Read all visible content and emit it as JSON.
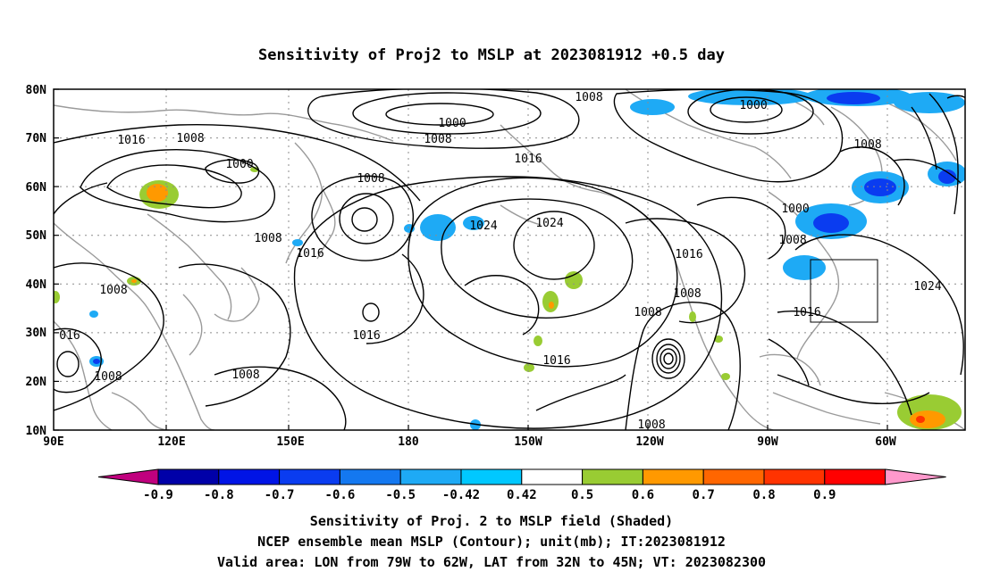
{
  "title": "Sensitivity of Proj2 to MSLP at 2023081912 +0.5 day",
  "axes": {
    "lat_labels": [
      "80N",
      "70N",
      "60N",
      "50N",
      "40N",
      "30N",
      "20N",
      "10N"
    ],
    "lon_labels": [
      "90E",
      "120E",
      "150E",
      "180",
      "150W",
      "120W",
      "90W",
      "60W"
    ]
  },
  "contour_labels": [
    "1000",
    "1008",
    "1016",
    "1024",
    "016"
  ],
  "colorbar": {
    "labels": [
      "-0.9",
      "-0.8",
      "-0.7",
      "-0.6",
      "-0.5",
      "-0.42",
      "0.42",
      "0.5",
      "0.6",
      "0.7",
      "0.8",
      "0.9"
    ],
    "colors": [
      "#c0007e",
      "#0000a8",
      "#0014e6",
      "#0a3cf0",
      "#1478f0",
      "#1eaaf5",
      "#00c8ff",
      "#ffffff",
      "#99cc33",
      "#ff9900",
      "#ff6600",
      "#ff3300",
      "#ff0000",
      "#ff99cc"
    ]
  },
  "captions": {
    "line1": "Sensitivity of Proj. 2 to MSLP field (Shaded)",
    "line2": "NCEP ensemble mean MSLP (Contour); unit(mb); IT:2023081912",
    "line3": "Valid area: LON from 79W to 62W, LAT from 32N to 45N; VT: 2023082300"
  },
  "valid_area": {
    "lon_min": -79,
    "lon_max": -62,
    "lat_min": 32,
    "lat_max": 45
  }
}
